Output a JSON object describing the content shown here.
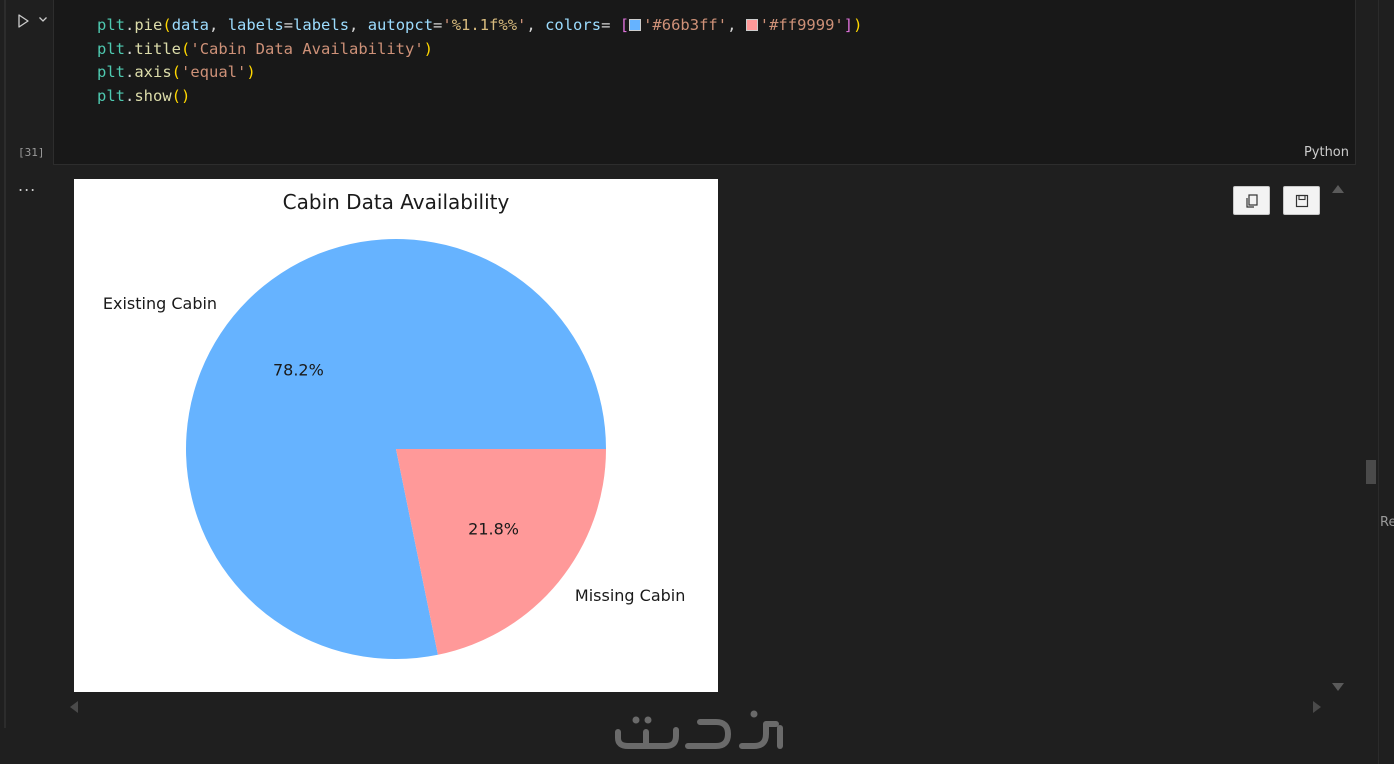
{
  "cell": {
    "execution_count": "[31]",
    "language": "Python",
    "code_lines": [
      "plt.pie(data, labels=labels, autopct='%1.1f%%', colors= ['#66b3ff', '#ff9999'])",
      "plt.title('Cabin Data Availability')",
      "plt.axis('equal')",
      "plt.show()"
    ],
    "swatch_colors": [
      "#66b3ff",
      "#ff9999"
    ]
  },
  "output": {
    "more_label": "...",
    "edge_text": "Re"
  },
  "chart_data": {
    "type": "pie",
    "title": "Cabin Data Availability",
    "labels": [
      "Existing Cabin",
      "Missing Cabin"
    ],
    "values": [
      78.2,
      21.8
    ],
    "autopct_labels": [
      "78.2%",
      "21.8%"
    ],
    "colors": [
      "#66b3ff",
      "#ff9999"
    ],
    "start_angle_deg": 0,
    "direction": "counterclockwise"
  },
  "icons": {
    "run": "play-icon",
    "chevron": "chevron-down-icon",
    "copy": "copy-icon",
    "save": "save-icon"
  }
}
